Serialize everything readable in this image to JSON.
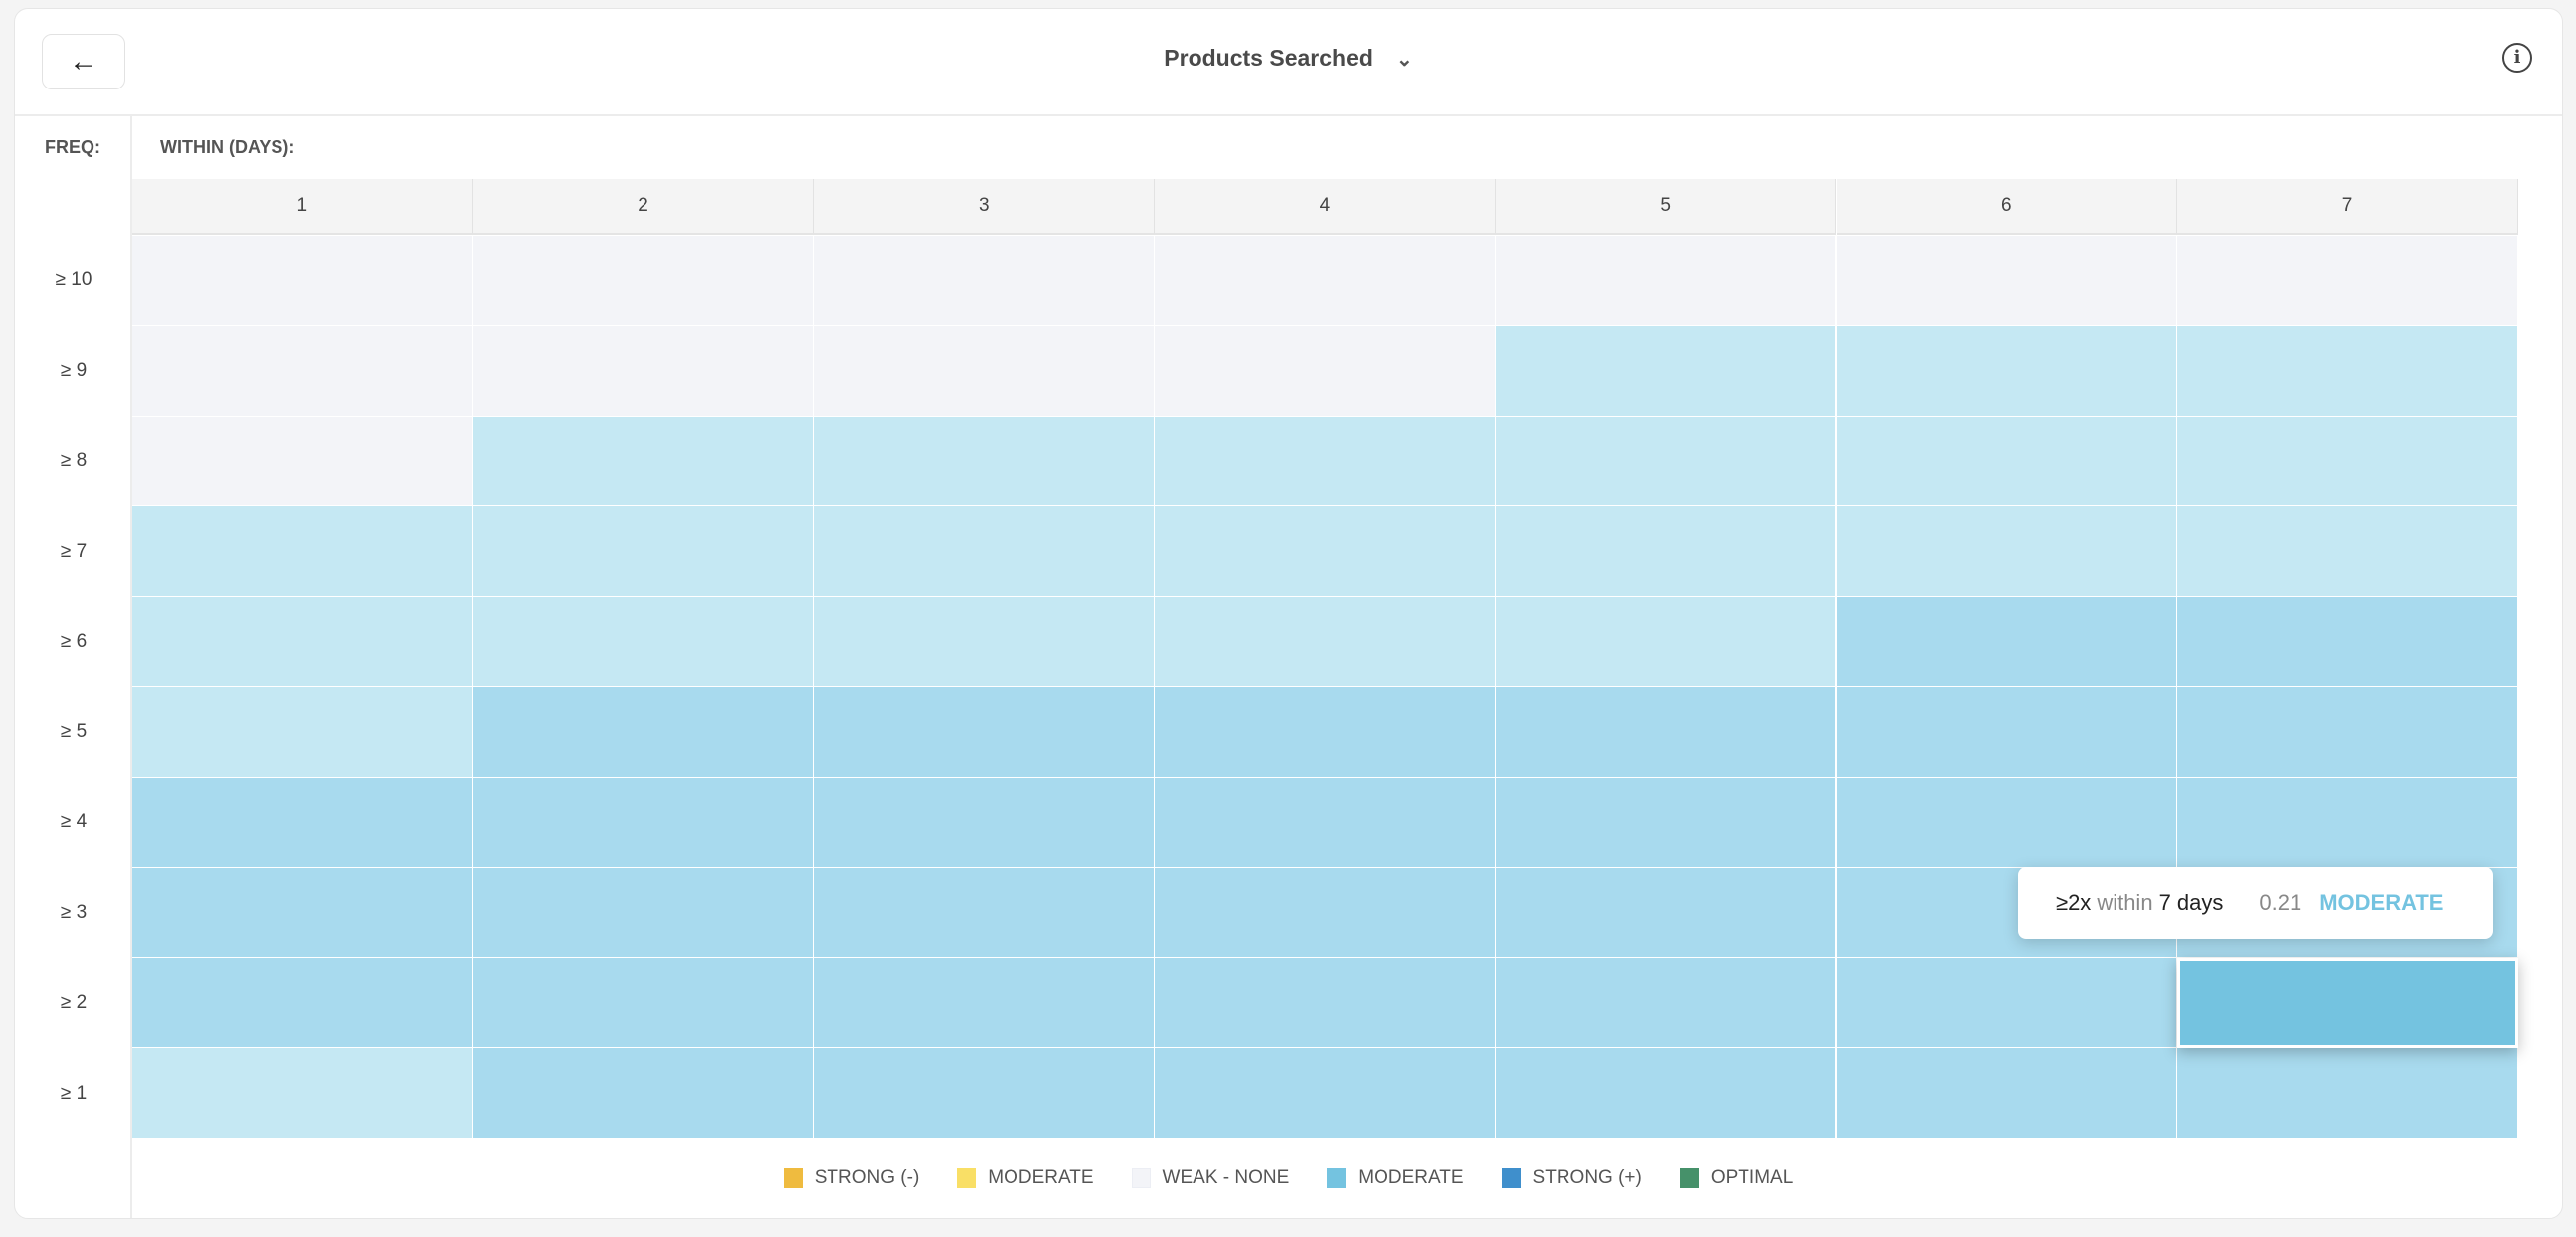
{
  "header": {
    "title": "Products Searched",
    "back_icon": "arrow-left-icon",
    "dropdown_icon": "chevron-down-icon",
    "info_icon": "info-icon"
  },
  "labels": {
    "freq": "FREQ:",
    "within": "WITHIN (DAYS):"
  },
  "colors": {
    "weak": "#f3f4f8",
    "light": "#c5e8f3",
    "medium": "#a8daee",
    "hover": "#74c3e0"
  },
  "chart_data": {
    "type": "heatmap",
    "x_label": "WITHIN (DAYS):",
    "y_label": "FREQ:",
    "columns": [
      "1",
      "2",
      "3",
      "4",
      "5",
      "6",
      "7"
    ],
    "rows": [
      "≥ 10",
      "≥ 9",
      "≥ 8",
      "≥ 7",
      "≥ 6",
      "≥ 5",
      "≥ 4",
      "≥ 3",
      "≥ 2",
      "≥ 1"
    ],
    "levels": [
      [
        "weak",
        "weak",
        "weak",
        "weak",
        "weak",
        "weak",
        "weak"
      ],
      [
        "weak",
        "weak",
        "weak",
        "weak",
        "light",
        "light",
        "light"
      ],
      [
        "weak",
        "light",
        "light",
        "light",
        "light",
        "light",
        "light"
      ],
      [
        "light",
        "light",
        "light",
        "light",
        "light",
        "light",
        "light"
      ],
      [
        "light",
        "light",
        "light",
        "light",
        "light",
        "medium",
        "medium"
      ],
      [
        "light",
        "medium",
        "medium",
        "medium",
        "medium",
        "medium",
        "medium"
      ],
      [
        "medium",
        "medium",
        "medium",
        "medium",
        "medium",
        "medium",
        "medium"
      ],
      [
        "medium",
        "medium",
        "medium",
        "medium",
        "medium",
        "medium",
        "medium"
      ],
      [
        "medium",
        "medium",
        "medium",
        "medium",
        "medium",
        "medium",
        "medium"
      ],
      [
        "light",
        "medium",
        "medium",
        "medium",
        "medium",
        "medium",
        "medium"
      ]
    ],
    "highlighted": {
      "row": 8,
      "col": 6
    }
  },
  "tooltip": {
    "freq": "≥2x",
    "mid": "within",
    "days": "7 days",
    "value": "0.21",
    "strength": "MODERATE"
  },
  "legend": [
    {
      "label": "STRONG (-)",
      "color": "#efbb3f"
    },
    {
      "label": "MODERATE",
      "color": "#f9df66"
    },
    {
      "label": "WEAK - NONE",
      "color": "#f3f4f8"
    },
    {
      "label": "MODERATE",
      "color": "#74c3e0"
    },
    {
      "label": "STRONG (+)",
      "color": "#3f8fcc"
    },
    {
      "label": "OPTIMAL",
      "color": "#46916a"
    }
  ]
}
